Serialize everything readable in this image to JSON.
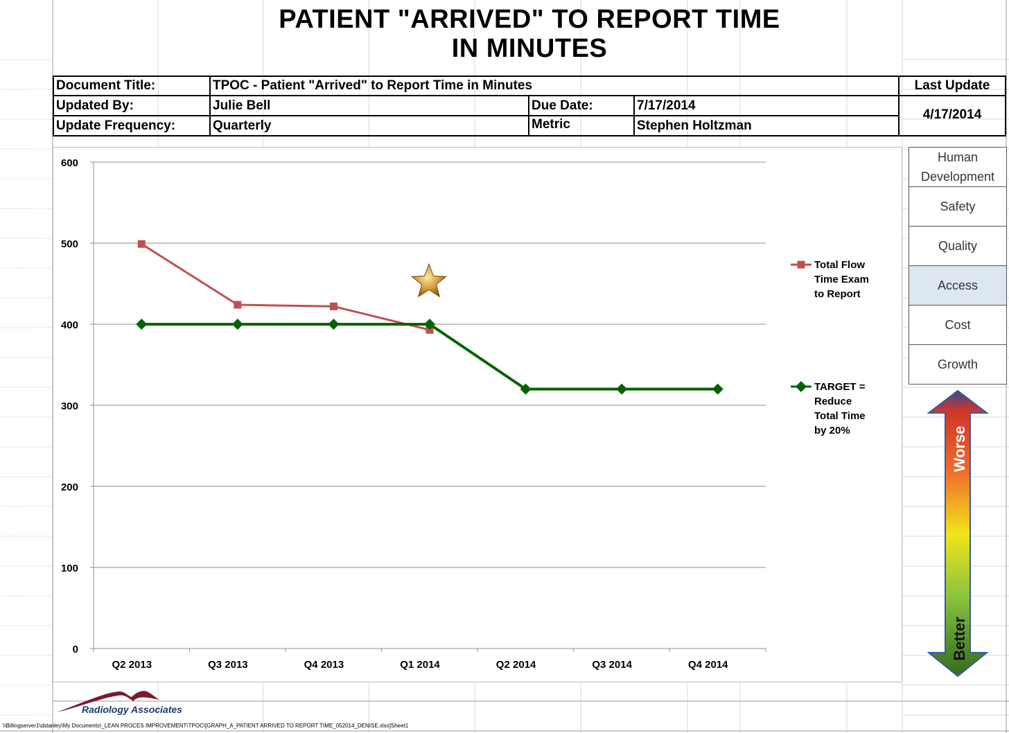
{
  "header": {
    "title_line1": "PATIENT \"ARRIVED\" TO REPORT TIME",
    "title_line2": "IN MINUTES",
    "document_title_label": "Document Title:",
    "document_title_value": "TPOC - Patient \"Arrived\" to Report Time in Minutes",
    "last_update_label": "Last Update",
    "last_update_value": "4/17/2014",
    "updated_by_label": "Updated By:",
    "updated_by_value": "Julie Bell",
    "due_date_label": "Due Date:",
    "due_date_value": "7/17/2014",
    "update_frequency_label": "Update Frequency:",
    "update_frequency_value": "Quarterly",
    "metric_label": "Metric",
    "metric_value": "Stephen Holtzman"
  },
  "categories_panel": {
    "items": [
      "Human Development",
      "Safety",
      "Quality",
      "Access",
      "Cost",
      "Growth"
    ],
    "active": "Access",
    "arrow_top_label": "Worse",
    "arrow_bottom_label": "Better"
  },
  "footer": {
    "logo_text": "Radiology Associates",
    "file_path": "\\\\Billingserver1\\dstanley\\My Documents\\_LEAN PROCES IMPROVEMENT\\TPOC\\[GRAPH_A_PATIENT ARRIVED TO REPORT TIME_052014_DENISE.xlsx]Sheet1"
  },
  "colors": {
    "series_flow": "#c0504d",
    "series_target": "#006400",
    "gridline": "#8c8c8c",
    "active_category": "#dde7f1",
    "logo": "#7b1a2e"
  },
  "chart_data": {
    "type": "line",
    "categories": [
      "Q2 2013",
      "Q3 2013",
      "Q4 2013",
      "Q1 2014",
      "Q2 2014",
      "Q3 2014",
      "Q4 2014"
    ],
    "ylim": [
      0,
      600
    ],
    "yticks": [
      0,
      100,
      200,
      300,
      400,
      500,
      600
    ],
    "grid": true,
    "legend_position": "right",
    "series": [
      {
        "name": "Total Flow Time Exam to Report",
        "legend_lines": [
          "Total Flow",
          "Time Exam",
          "to Report"
        ],
        "marker": "square",
        "color": "#c0504d",
        "values": [
          499,
          424,
          422,
          393,
          null,
          null,
          null
        ]
      },
      {
        "name": "TARGET = Reduce Total Time by 20%",
        "legend_lines": [
          "TARGET =",
          "Reduce",
          "Total Time",
          "by 20%"
        ],
        "marker": "diamond",
        "color": "#006400",
        "values": [
          400,
          400,
          400,
          400,
          320,
          320,
          320
        ]
      }
    ],
    "annotations": [
      {
        "type": "star",
        "category": "Q1 2014",
        "value": 440
      }
    ]
  }
}
